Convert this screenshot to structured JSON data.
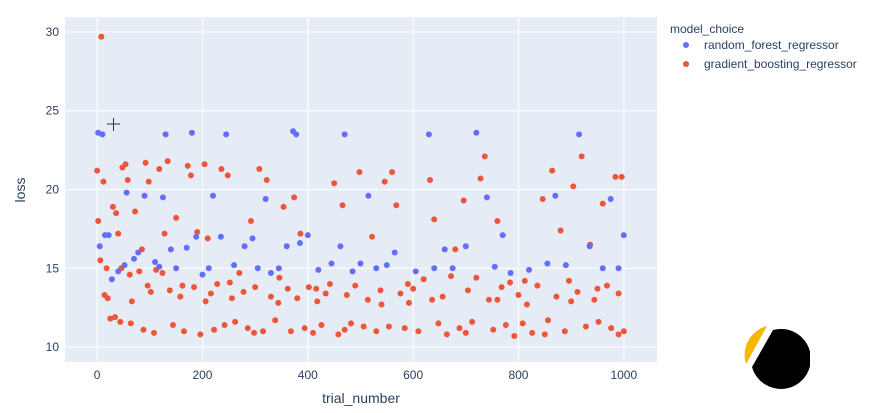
{
  "chart_data": {
    "type": "scatter",
    "xlabel": "trial_number",
    "ylabel": "loss",
    "xlim": [
      -61,
      1063
    ],
    "ylim": [
      9.05,
      30.95
    ],
    "xticks": [
      0,
      200,
      400,
      600,
      800,
      1000
    ],
    "yticks": [
      10,
      15,
      20,
      25,
      30
    ],
    "xtick_labels": [
      "0",
      "200",
      "400",
      "600",
      "800",
      "1000"
    ],
    "ytick_labels": [
      "10",
      "15",
      "20",
      "25",
      "30"
    ],
    "grid": true,
    "legend_title": "model_choice",
    "legend_position": "right",
    "series": [
      {
        "name": "random_forest_regressor",
        "color": "#636efa",
        "points": [
          [
            2,
            23.6
          ],
          [
            10,
            23.5
          ],
          [
            5,
            16.4
          ],
          [
            15,
            17.1
          ],
          [
            22,
            17.1
          ],
          [
            28,
            14.3
          ],
          [
            40,
            14.8
          ],
          [
            52,
            15.2
          ],
          [
            56,
            19.8
          ],
          [
            70,
            15.6
          ],
          [
            78,
            16.0
          ],
          [
            90,
            19.6
          ],
          [
            110,
            15.4
          ],
          [
            118,
            15.1
          ],
          [
            125,
            19.5
          ],
          [
            130,
            23.5
          ],
          [
            140,
            16.2
          ],
          [
            150,
            15.0
          ],
          [
            170,
            16.3
          ],
          [
            180,
            23.6
          ],
          [
            188,
            17.0
          ],
          [
            200,
            14.6
          ],
          [
            212,
            15.0
          ],
          [
            220,
            19.6
          ],
          [
            235,
            17.0
          ],
          [
            245,
            23.5
          ],
          [
            260,
            15.2
          ],
          [
            280,
            16.4
          ],
          [
            295,
            16.9
          ],
          [
            305,
            15.0
          ],
          [
            320,
            19.4
          ],
          [
            330,
            14.7
          ],
          [
            345,
            15.0
          ],
          [
            360,
            16.4
          ],
          [
            372,
            23.7
          ],
          [
            378,
            23.5
          ],
          [
            385,
            16.6
          ],
          [
            400,
            17.1
          ],
          [
            420,
            14.9
          ],
          [
            445,
            15.3
          ],
          [
            462,
            16.4
          ],
          [
            470,
            23.5
          ],
          [
            485,
            14.8
          ],
          [
            500,
            15.3
          ],
          [
            515,
            19.6
          ],
          [
            530,
            15.0
          ],
          [
            550,
            15.2
          ],
          [
            565,
            16.0
          ],
          [
            605,
            14.8
          ],
          [
            630,
            23.5
          ],
          [
            640,
            15.0
          ],
          [
            660,
            16.2
          ],
          [
            675,
            15.0
          ],
          [
            700,
            16.4
          ],
          [
            720,
            23.6
          ],
          [
            740,
            19.5
          ],
          [
            755,
            15.1
          ],
          [
            770,
            17.1
          ],
          [
            785,
            14.7
          ],
          [
            820,
            14.9
          ],
          [
            855,
            15.3
          ],
          [
            870,
            19.6
          ],
          [
            890,
            15.2
          ],
          [
            915,
            23.5
          ],
          [
            935,
            16.4
          ],
          [
            960,
            15.0
          ],
          [
            975,
            19.4
          ],
          [
            990,
            15.0
          ],
          [
            1000,
            17.1
          ]
        ]
      },
      {
        "name": "gradient_boosting_regressor",
        "color": "#ef553b",
        "points": [
          [
            8,
            29.7
          ],
          [
            0,
            21.2
          ],
          [
            12,
            20.5
          ],
          [
            2,
            18.0
          ],
          [
            6,
            15.5
          ],
          [
            18,
            15.0
          ],
          [
            20,
            13.1
          ],
          [
            25,
            11.8
          ],
          [
            30,
            18.9
          ],
          [
            36,
            18.5
          ],
          [
            40,
            17.2
          ],
          [
            44,
            11.6
          ],
          [
            48,
            21.4
          ],
          [
            54,
            21.6
          ],
          [
            58,
            20.6
          ],
          [
            62,
            14.6
          ],
          [
            66,
            12.9
          ],
          [
            72,
            18.6
          ],
          [
            80,
            14.8
          ],
          [
            85,
            16.2
          ],
          [
            92,
            21.7
          ],
          [
            98,
            20.5
          ],
          [
            102,
            13.5
          ],
          [
            108,
            10.9
          ],
          [
            112,
            14.9
          ],
          [
            118,
            21.3
          ],
          [
            128,
            17.2
          ],
          [
            134,
            21.8
          ],
          [
            138,
            13.6
          ],
          [
            144,
            11.4
          ],
          [
            150,
            18.2
          ],
          [
            158,
            13.2
          ],
          [
            165,
            11.0
          ],
          [
            172,
            21.5
          ],
          [
            178,
            20.9
          ],
          [
            184,
            13.8
          ],
          [
            190,
            17.3
          ],
          [
            196,
            10.8
          ],
          [
            204,
            21.6
          ],
          [
            210,
            16.9
          ],
          [
            216,
            13.4
          ],
          [
            222,
            11.1
          ],
          [
            228,
            14.0
          ],
          [
            236,
            21.3
          ],
          [
            242,
            11.4
          ],
          [
            248,
            20.9
          ],
          [
            256,
            13.1
          ],
          [
            262,
            11.6
          ],
          [
            270,
            14.7
          ],
          [
            278,
            13.5
          ],
          [
            286,
            11.2
          ],
          [
            292,
            18.0
          ],
          [
            300,
            13.8
          ],
          [
            308,
            21.3
          ],
          [
            315,
            11.0
          ],
          [
            322,
            20.6
          ],
          [
            330,
            13.2
          ],
          [
            338,
            11.7
          ],
          [
            346,
            14.4
          ],
          [
            354,
            18.9
          ],
          [
            362,
            13.7
          ],
          [
            368,
            11.0
          ],
          [
            374,
            19.5
          ],
          [
            380,
            13.1
          ],
          [
            386,
            17.2
          ],
          [
            394,
            11.2
          ],
          [
            402,
            13.8
          ],
          [
            410,
            10.9
          ],
          [
            418,
            12.9
          ],
          [
            426,
            11.4
          ],
          [
            434,
            13.4
          ],
          [
            442,
            14.0
          ],
          [
            450,
            20.4
          ],
          [
            458,
            10.8
          ],
          [
            466,
            19.0
          ],
          [
            474,
            13.3
          ],
          [
            482,
            11.5
          ],
          [
            490,
            13.9
          ],
          [
            498,
            21.1
          ],
          [
            506,
            11.3
          ],
          [
            514,
            13.0
          ],
          [
            522,
            17.0
          ],
          [
            530,
            11.0
          ],
          [
            538,
            13.6
          ],
          [
            546,
            20.5
          ],
          [
            554,
            11.3
          ],
          [
            560,
            21.1
          ],
          [
            568,
            19.0
          ],
          [
            576,
            13.4
          ],
          [
            584,
            11.2
          ],
          [
            592,
            12.8
          ],
          [
            600,
            13.7
          ],
          [
            610,
            11.0
          ],
          [
            620,
            14.3
          ],
          [
            632,
            20.6
          ],
          [
            640,
            18.1
          ],
          [
            648,
            11.5
          ],
          [
            656,
            13.2
          ],
          [
            664,
            10.8
          ],
          [
            672,
            14.5
          ],
          [
            680,
            16.2
          ],
          [
            688,
            11.2
          ],
          [
            696,
            19.3
          ],
          [
            704,
            13.6
          ],
          [
            712,
            11.6
          ],
          [
            720,
            14.4
          ],
          [
            728,
            20.7
          ],
          [
            736,
            22.1
          ],
          [
            744,
            13.0
          ],
          [
            752,
            11.1
          ],
          [
            760,
            18.0
          ],
          [
            768,
            13.8
          ],
          [
            776,
            11.4
          ],
          [
            784,
            14.1
          ],
          [
            792,
            10.7
          ],
          [
            800,
            13.3
          ],
          [
            808,
            11.5
          ],
          [
            816,
            12.7
          ],
          [
            826,
            10.9
          ],
          [
            836,
            13.9
          ],
          [
            846,
            19.4
          ],
          [
            856,
            11.7
          ],
          [
            864,
            21.2
          ],
          [
            872,
            13.2
          ],
          [
            880,
            17.4
          ],
          [
            888,
            11.0
          ],
          [
            896,
            14.2
          ],
          [
            904,
            20.2
          ],
          [
            912,
            13.5
          ],
          [
            920,
            22.1
          ],
          [
            928,
            11.3
          ],
          [
            936,
            16.5
          ],
          [
            944,
            13.0
          ],
          [
            952,
            11.6
          ],
          [
            960,
            19.1
          ],
          [
            968,
            13.9
          ],
          [
            976,
            11.2
          ],
          [
            984,
            20.8
          ],
          [
            990,
            13.4
          ],
          [
            996,
            20.8
          ],
          [
            1000,
            11.0
          ],
          [
            14,
            13.3
          ],
          [
            34,
            11.9
          ],
          [
            46,
            15.0
          ],
          [
            64,
            11.5
          ],
          [
            88,
            11.1
          ],
          [
            96,
            13.9
          ],
          [
            124,
            14.7
          ],
          [
            162,
            13.9
          ],
          [
            206,
            12.9
          ],
          [
            252,
            14.1
          ],
          [
            298,
            10.9
          ],
          [
            344,
            12.8
          ],
          [
            416,
            13.7
          ],
          [
            470,
            11.1
          ],
          [
            540,
            12.7
          ],
          [
            590,
            14.0
          ],
          [
            636,
            13.0
          ],
          [
            700,
            10.9
          ],
          [
            760,
            13.0
          ],
          [
            812,
            14.2
          ],
          [
            850,
            10.8
          ],
          [
            900,
            12.9
          ],
          [
            950,
            13.7
          ],
          [
            990,
            10.8
          ]
        ]
      }
    ]
  },
  "logo_text": ""
}
